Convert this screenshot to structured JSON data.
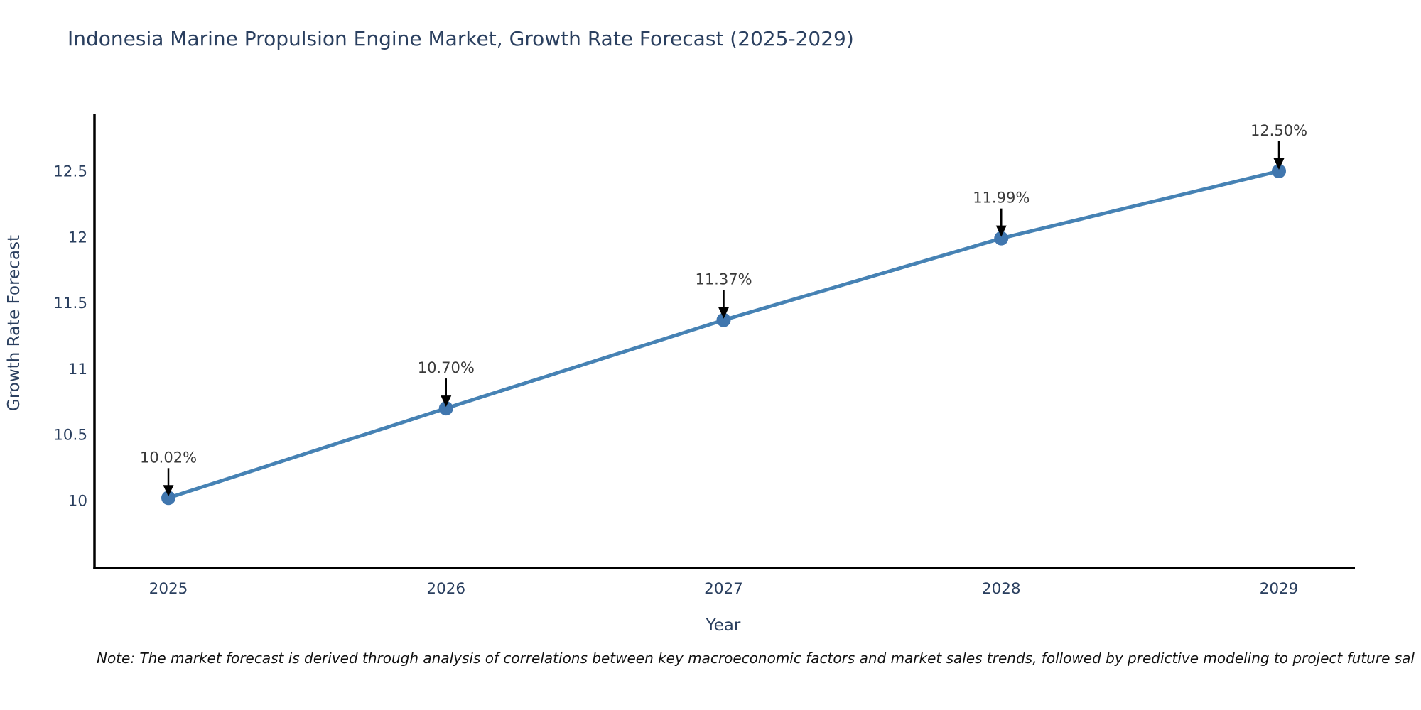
{
  "title": "Indonesia Marine Propulsion Engine Market, Growth Rate Forecast (2025-2029)",
  "note": "Note: The market forecast is derived through analysis of correlations between key macroeconomic factors and market sales trends, followed by predictive modeling to project future sal",
  "colors": {
    "line": "#4682b4",
    "marker": "#4076ae",
    "axis": "#000000",
    "tick_label": "#2a3f5f",
    "title_text": "#2a3f5f",
    "annotation_text": "#3a3a3a",
    "annotation_arrow": "#000000",
    "note_text": "#111111",
    "background": "#ffffff"
  },
  "chart_data": {
    "type": "line",
    "title": "Indonesia Marine Propulsion Engine Market, Growth Rate Forecast (2025-2029)",
    "xlabel": "Year",
    "ylabel": "Growth Rate Forecast",
    "categories": [
      "2025",
      "2026",
      "2027",
      "2028",
      "2029"
    ],
    "values": [
      10.02,
      10.7,
      11.37,
      11.99,
      12.5
    ],
    "labels": [
      "10.02%",
      "10.70%",
      "11.37%",
      "11.99%",
      "12.50%"
    ],
    "series_name": "Growth Rate Forecast",
    "yticks": [
      10,
      10.5,
      11,
      11.5,
      12,
      12.5
    ],
    "ytick_labels": [
      "10",
      "10.5",
      "11",
      "11.5",
      "12",
      "12.5"
    ],
    "ylim": [
      9.5,
      13.0
    ],
    "grid": false,
    "legend": false,
    "annotation_style": "percent value labels with downward black arrows above each point"
  }
}
